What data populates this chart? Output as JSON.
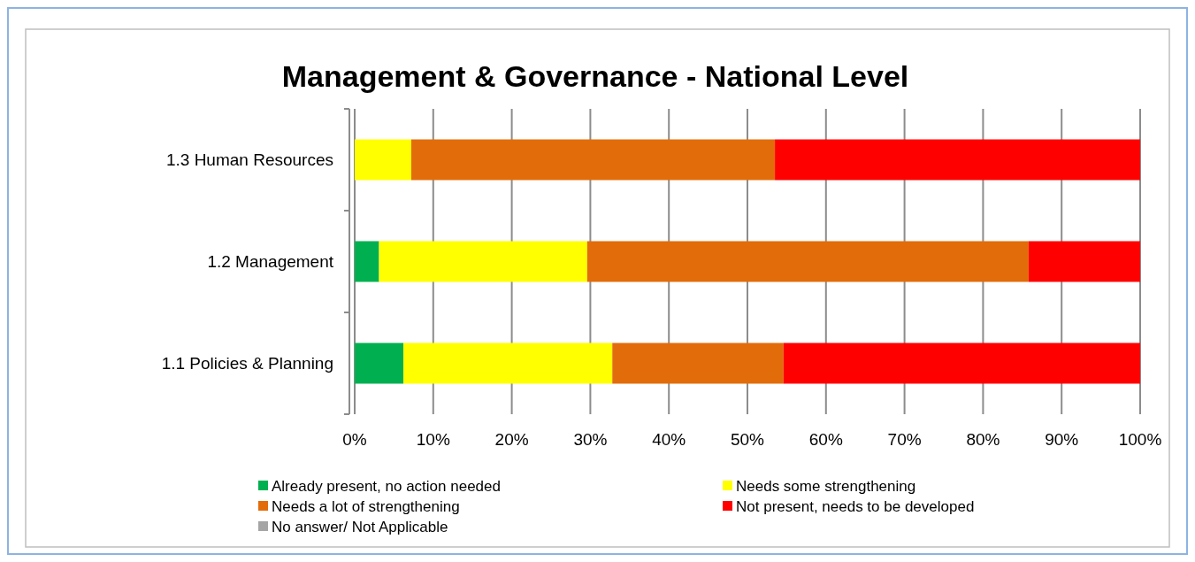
{
  "chart_data": {
    "type": "bar",
    "title": "Management & Governance - National Level",
    "orientation": "horizontal",
    "stacked": true,
    "categories": [
      "1.3 Human Resources",
      "1.2 Management",
      "1.1 Policies & Planning"
    ],
    "series": [
      {
        "name": "Already present, no action needed",
        "color": "#00b050",
        "values": [
          0,
          3.1,
          6.2
        ]
      },
      {
        "name": "Needs some strengthening",
        "color": "#ffff00",
        "values": [
          7.2,
          26.5,
          26.6
        ]
      },
      {
        "name": "Needs a lot of strengthening",
        "color": "#e36c0a",
        "values": [
          46.3,
          56.2,
          21.8
        ]
      },
      {
        "name": "Not present, needs to be developed",
        "color": "#ff0000",
        "values": [
          46.5,
          14.2,
          45.4
        ]
      },
      {
        "name": "No answer/ Not Applicable",
        "color": "#a5a5a5",
        "values": [
          0,
          0,
          0
        ]
      }
    ],
    "xlim": [
      0,
      100
    ],
    "xticks": [
      {
        "value": 0,
        "label": "0%"
      },
      {
        "value": 10,
        "label": "10%"
      },
      {
        "value": 20,
        "label": "20%"
      },
      {
        "value": 30,
        "label": "30%"
      },
      {
        "value": 40,
        "label": "40%"
      },
      {
        "value": 50,
        "label": "50%"
      },
      {
        "value": 60,
        "label": "60%"
      },
      {
        "value": 70,
        "label": "70%"
      },
      {
        "value": 80,
        "label": "80%"
      },
      {
        "value": 90,
        "label": "90%"
      },
      {
        "value": 100,
        "label": "100%"
      }
    ],
    "grid": "x",
    "legend": "bottom"
  }
}
